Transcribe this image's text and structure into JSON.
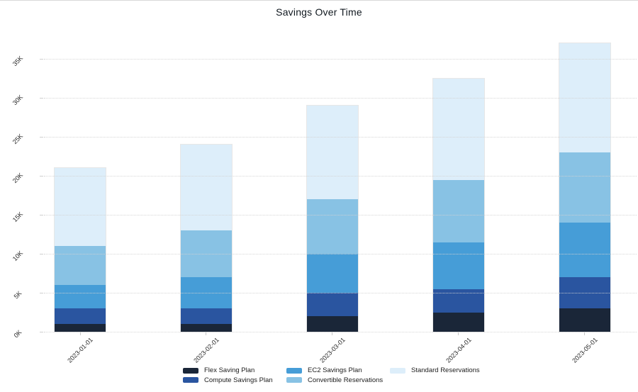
{
  "chart_data": {
    "type": "bar",
    "stacked": true,
    "title": "Savings Over Time",
    "categories": [
      "2023-01-01",
      "2023-02-01",
      "2023-03-01",
      "2023-04-01",
      "2023-05-01"
    ],
    "series": [
      {
        "name": "Flex Saving Plan",
        "color": "#1a2638",
        "values": [
          1,
          1,
          2,
          2.5,
          3
        ]
      },
      {
        "name": "Compute Savings Plan",
        "color": "#2a55a0",
        "values": [
          2,
          2,
          3,
          3,
          4
        ]
      },
      {
        "name": "EC2 Savings Plan",
        "color": "#469dd7",
        "values": [
          3,
          4,
          5,
          6,
          7
        ]
      },
      {
        "name": "Convertible Reservations",
        "color": "#88c2e4",
        "values": [
          5,
          6,
          7,
          8,
          9
        ]
      },
      {
        "name": "Standard Reservations",
        "color": "#ddeefa",
        "values": [
          10,
          11,
          12,
          13,
          14
        ]
      }
    ],
    "totals": [
      21,
      24,
      29,
      32.5,
      37
    ],
    "values_unit": "K",
    "yticks": [
      "0K",
      "5K",
      "10K",
      "15K",
      "20K",
      "25K",
      "30K",
      "35K"
    ],
    "ytick_values": [
      0,
      5,
      10,
      15,
      20,
      25,
      30,
      35
    ],
    "ylim": [
      0,
      37.5
    ],
    "xlabel": "",
    "ylabel": "",
    "grid": "horizontal-dotted",
    "legend_position": "bottom"
  }
}
